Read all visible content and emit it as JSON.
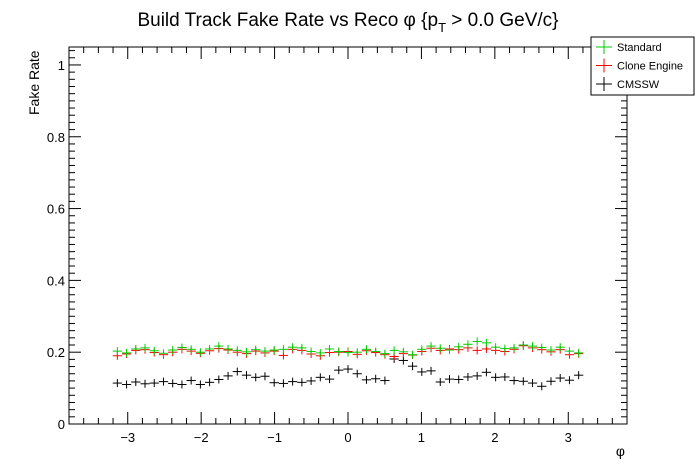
{
  "chart_data": {
    "type": "scatter",
    "title": "Build Track Fake Rate vs Reco φ {p",
    "title_sub": "T",
    "title_tail": " > 0.0 GeV/c}",
    "xlabel": "φ",
    "ylabel": "Fake Rate",
    "xlim": [
      -3.8,
      3.8
    ],
    "ylim": [
      0,
      1.05
    ],
    "xticks": [
      -3,
      -2,
      -1,
      0,
      1,
      2,
      3
    ],
    "xtick_labels": [
      "−3",
      "−2",
      "−1",
      "0",
      "1",
      "2",
      "3"
    ],
    "yticks": [
      0,
      0.2,
      0.4,
      0.6,
      0.8,
      1
    ],
    "ytick_labels": [
      "0",
      "0.2",
      "0.4",
      "0.6",
      "0.8",
      "1"
    ],
    "grid": false,
    "legend_position": "top-right",
    "x": [
      -3.1416,
      -3.0159,
      -2.8903,
      -2.7646,
      -2.6389,
      -2.5133,
      -2.3876,
      -2.2619,
      -2.1363,
      -2.0106,
      -1.885,
      -1.7593,
      -1.6336,
      -1.508,
      -1.3823,
      -1.2566,
      -1.131,
      -1.0053,
      -0.8796,
      -0.754,
      -0.6283,
      -0.5027,
      -0.377,
      -0.2513,
      -0.1257,
      0.0,
      0.1257,
      0.2513,
      0.377,
      0.5027,
      0.6283,
      0.754,
      0.8796,
      1.0053,
      1.131,
      1.2566,
      1.3823,
      1.508,
      1.6336,
      1.7593,
      1.885,
      2.0106,
      2.1363,
      2.2619,
      2.3876,
      2.5133,
      2.6389,
      2.7646,
      2.8903,
      3.0159,
      3.1416
    ],
    "series": [
      {
        "name": "Standard",
        "color": "#00cc00",
        "values": [
          0.203,
          0.198,
          0.209,
          0.212,
          0.204,
          0.197,
          0.206,
          0.213,
          0.208,
          0.2,
          0.209,
          0.217,
          0.209,
          0.205,
          0.201,
          0.207,
          0.203,
          0.206,
          0.208,
          0.214,
          0.212,
          0.202,
          0.198,
          0.209,
          0.202,
          0.199,
          0.2,
          0.208,
          0.202,
          0.196,
          0.205,
          0.201,
          0.193,
          0.208,
          0.217,
          0.211,
          0.206,
          0.215,
          0.222,
          0.23,
          0.226,
          0.214,
          0.21,
          0.212,
          0.22,
          0.217,
          0.213,
          0.206,
          0.214,
          0.203,
          0.198
        ]
      },
      {
        "name": "Clone Engine",
        "color": "#ff0000",
        "values": [
          0.19,
          0.195,
          0.205,
          0.207,
          0.199,
          0.193,
          0.2,
          0.208,
          0.203,
          0.197,
          0.204,
          0.21,
          0.206,
          0.2,
          0.196,
          0.203,
          0.198,
          0.203,
          0.191,
          0.208,
          0.205,
          0.195,
          0.19,
          0.199,
          0.2,
          0.202,
          0.194,
          0.204,
          0.199,
          0.193,
          0.188,
          0.196,
          0.192,
          0.202,
          0.211,
          0.205,
          0.209,
          0.207,
          0.212,
          0.205,
          0.209,
          0.205,
          0.202,
          0.208,
          0.218,
          0.212,
          0.207,
          0.201,
          0.207,
          0.193,
          0.196
        ]
      },
      {
        "name": "CMSSW",
        "color": "#000000",
        "values": [
          0.114,
          0.11,
          0.117,
          0.112,
          0.114,
          0.118,
          0.113,
          0.11,
          0.121,
          0.11,
          0.116,
          0.124,
          0.134,
          0.146,
          0.136,
          0.13,
          0.133,
          0.115,
          0.113,
          0.118,
          0.116,
          0.12,
          0.13,
          0.125,
          0.15,
          0.153,
          0.14,
          0.123,
          0.126,
          0.121,
          0.181,
          0.177,
          0.161,
          0.145,
          0.148,
          0.117,
          0.125,
          0.124,
          0.131,
          0.134,
          0.144,
          0.13,
          0.131,
          0.121,
          0.119,
          0.114,
          0.105,
          0.119,
          0.128,
          0.122,
          0.136
        ]
      }
    ]
  }
}
